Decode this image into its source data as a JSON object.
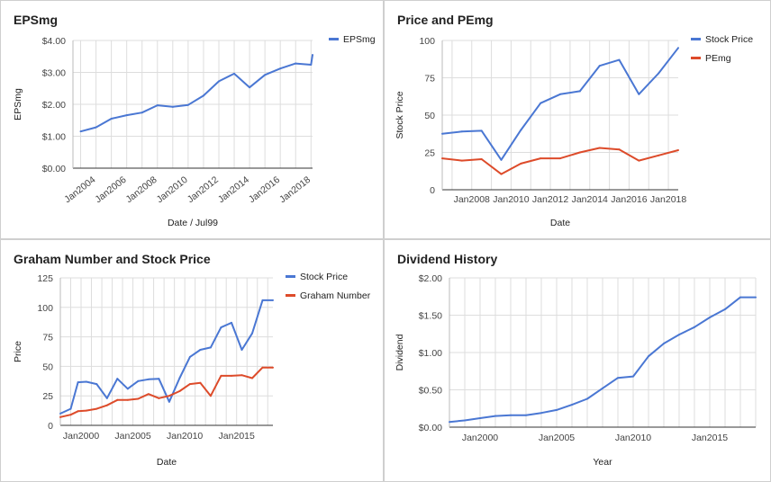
{
  "colors": {
    "blue": "#4a77d3",
    "red": "#dd4b2a",
    "grid": "#dddddd",
    "axis": "#333333"
  },
  "chart_data": [
    {
      "type": "line",
      "title": "EPSmg",
      "xlabel": "Date / Jul99",
      "ylabel": "EPSmg",
      "x_ticks": [
        "Jan2004",
        "Jan2006",
        "Jan2008",
        "Jan2010",
        "Jan2012",
        "Jan2014",
        "Jan2016",
        "Jan2018"
      ],
      "y_ticks": [
        "$0.00",
        "$1.00",
        "$2.00",
        "$3.00",
        "$4.00"
      ],
      "xlim": [
        2002.5,
        2018.1
      ],
      "ylim": [
        0,
        4
      ],
      "x_tick_rotate": true,
      "legend": "right",
      "series": [
        {
          "name": "EPSmg",
          "color": "#4a77d3",
          "x": [
            2003,
            2004,
            2005,
            2006,
            2007,
            2008,
            2009,
            2010,
            2011,
            2012,
            2013,
            2014,
            2015,
            2016,
            2017,
            2018,
            2018.1
          ],
          "values": [
            1.15,
            1.28,
            1.55,
            1.66,
            1.74,
            1.97,
            1.92,
            1.98,
            2.27,
            2.72,
            2.96,
            2.53,
            2.92,
            3.12,
            3.28,
            3.24,
            3.55
          ]
        }
      ]
    },
    {
      "type": "line",
      "title": "Price and PEmg",
      "xlabel": "Date",
      "ylabel": "Stock Price",
      "x_ticks": [
        "Jan2008",
        "Jan2010",
        "Jan2012",
        "Jan2014",
        "Jan2016",
        "Jan2018"
      ],
      "y_ticks": [
        "0",
        "25",
        "50",
        "75",
        "100"
      ],
      "xlim": [
        2006.5,
        2018.5
      ],
      "ylim": [
        0,
        100
      ],
      "legend": "right",
      "series": [
        {
          "name": "Stock Price",
          "color": "#4a77d3",
          "x": [
            2006.5,
            2007.5,
            2008.5,
            2009.5,
            2010.5,
            2011.5,
            2012.5,
            2013.5,
            2014.5,
            2015.5,
            2016.5,
            2017.5,
            2018.5
          ],
          "values": [
            37.5,
            39,
            39.5,
            20,
            40,
            58,
            64,
            66,
            83,
            87,
            64,
            78,
            95
          ]
        },
        {
          "name": "PEmg",
          "color": "#dd4b2a",
          "x": [
            2006.5,
            2007.5,
            2008.5,
            2009.5,
            2010.5,
            2011.5,
            2012.5,
            2013.5,
            2014.5,
            2015.5,
            2016.5,
            2017.5,
            2018.5
          ],
          "values": [
            21,
            19.5,
            20.5,
            10.5,
            17.5,
            21,
            21,
            25,
            28,
            27,
            19.5,
            23,
            26.5
          ]
        }
      ]
    },
    {
      "type": "line",
      "title": "Graham Number and Stock Price",
      "xlabel": "Date",
      "ylabel": "Price",
      "x_ticks": [
        "Jan2000",
        "Jan2005",
        "Jan2010",
        "Jan2015"
      ],
      "y_ticks": [
        "0",
        "25",
        "50",
        "75",
        "100",
        "125"
      ],
      "xlim": [
        1998,
        2018.5
      ],
      "ylim": [
        0,
        125
      ],
      "legend": "right",
      "series": [
        {
          "name": "Stock Price",
          "color": "#4a77d3",
          "x": [
            1998,
            1999,
            1999.7,
            2000.5,
            2001.5,
            2002.5,
            2003.5,
            2004.5,
            2005.5,
            2006.5,
            2007.5,
            2008.5,
            2009.5,
            2010.5,
            2011.5,
            2012.5,
            2013.5,
            2014.5,
            2015.5,
            2016.5,
            2017.5,
            2018.5
          ],
          "values": [
            10,
            14,
            36.5,
            37,
            35,
            23,
            39.5,
            31,
            37.5,
            39,
            39.5,
            20,
            40,
            58,
            64,
            66,
            83,
            87,
            64,
            78,
            106,
            106
          ]
        },
        {
          "name": "Graham Number",
          "color": "#dd4b2a",
          "x": [
            1998,
            1999,
            1999.7,
            2000.5,
            2001.5,
            2002.5,
            2003.5,
            2004.5,
            2005.5,
            2006.5,
            2007.5,
            2008.5,
            2009.5,
            2010.5,
            2011.5,
            2012.5,
            2013.5,
            2014.5,
            2015.5,
            2016.5,
            2017.5,
            2018.5
          ],
          "values": [
            7,
            9,
            12,
            12.5,
            14,
            17,
            21.5,
            21.5,
            22.5,
            26.5,
            23,
            25,
            29,
            35,
            36,
            25,
            42,
            42,
            42.5,
            40,
            49,
            49
          ]
        }
      ]
    },
    {
      "type": "line",
      "title": "Dividend History",
      "xlabel": "Year",
      "ylabel": "Dividend",
      "x_ticks": [
        "Jan2000",
        "Jan2005",
        "Jan2010",
        "Jan2015"
      ],
      "y_ticks": [
        "$0.00",
        "$0.50",
        "$1.00",
        "$1.50",
        "$2.00"
      ],
      "xlim": [
        1998,
        2018
      ],
      "ylim": [
        0,
        2
      ],
      "legend": "none",
      "series": [
        {
          "name": "",
          "color": "#4a77d3",
          "x": [
            1998,
            1999,
            2000,
            2001,
            2002,
            2003,
            2004,
            2005,
            2006,
            2007,
            2008,
            2009,
            2010,
            2011,
            2012,
            2013,
            2014,
            2015,
            2016,
            2017,
            2018
          ],
          "values": [
            0.07,
            0.09,
            0.12,
            0.15,
            0.16,
            0.16,
            0.19,
            0.23,
            0.3,
            0.38,
            0.52,
            0.66,
            0.68,
            0.95,
            1.12,
            1.24,
            1.34,
            1.47,
            1.58,
            1.74,
            1.74
          ]
        }
      ]
    }
  ]
}
